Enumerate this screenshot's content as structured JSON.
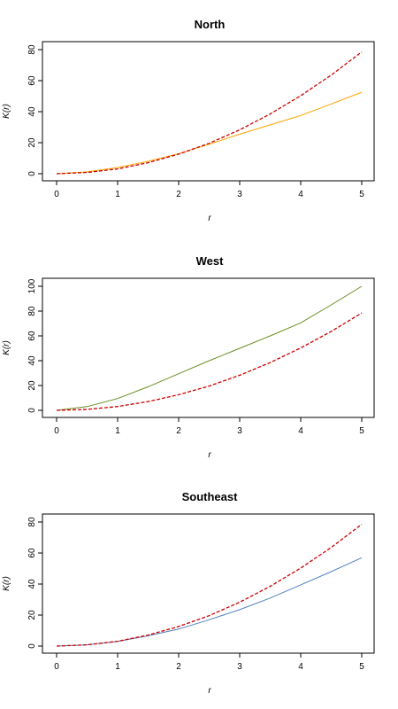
{
  "chart_data": [
    {
      "type": "line",
      "title": "North",
      "xlabel": "r",
      "ylabel": "K(r)",
      "xlim": [
        0,
        5
      ],
      "ylim": [
        0,
        80
      ],
      "xticks": [
        "0",
        "1",
        "2",
        "3",
        "4",
        "5"
      ],
      "yticks": [
        "0",
        "20",
        "40",
        "60",
        "80"
      ],
      "grid": false,
      "x": [
        0,
        0.5,
        1,
        1.5,
        2,
        2.5,
        3,
        3.5,
        4,
        4.5,
        5
      ],
      "series": [
        {
          "color": "#FFA500",
          "style": "solid",
          "values": [
            0,
            1.2,
            4.0,
            8.0,
            13.0,
            19.0,
            25.5,
            31.5,
            37.5,
            45.0,
            52.5
          ]
        },
        {
          "color": "#CC0000",
          "style": "dashed",
          "values": [
            0,
            0.8,
            3.1,
            7.1,
            12.6,
            19.6,
            28.3,
            38.5,
            50.3,
            63.6,
            78.5
          ]
        }
      ]
    },
    {
      "type": "line",
      "title": "West",
      "xlabel": "r",
      "ylabel": "K(r)",
      "xlim": [
        0,
        5
      ],
      "ylim": [
        0,
        100
      ],
      "xticks": [
        "0",
        "1",
        "2",
        "3",
        "4",
        "5"
      ],
      "yticks": [
        "0",
        "20",
        "40",
        "60",
        "80",
        "100"
      ],
      "grid": false,
      "x": [
        0,
        0.5,
        1,
        1.5,
        2,
        2.5,
        3,
        3.5,
        4,
        4.5,
        5
      ],
      "series": [
        {
          "color": "#6B8E23",
          "style": "solid",
          "values": [
            0,
            3.0,
            9.5,
            19.0,
            29.5,
            40.0,
            50.0,
            60.0,
            70.5,
            85.0,
            100.0
          ]
        },
        {
          "color": "#CC0000",
          "style": "dashed",
          "values": [
            0,
            0.8,
            3.1,
            7.1,
            12.6,
            19.6,
            28.3,
            38.5,
            50.3,
            63.6,
            78.5
          ]
        }
      ]
    },
    {
      "type": "line",
      "title": "Southeast",
      "xlabel": "r",
      "ylabel": "K(r)",
      "xlim": [
        0,
        5
      ],
      "ylim": [
        0,
        80
      ],
      "xticks": [
        "0",
        "1",
        "2",
        "3",
        "4",
        "5"
      ],
      "yticks": [
        "0",
        "20",
        "40",
        "60",
        "80"
      ],
      "grid": false,
      "x": [
        0,
        0.5,
        1,
        1.5,
        2,
        2.5,
        3,
        3.5,
        4,
        4.5,
        5
      ],
      "series": [
        {
          "color": "#4F81BD",
          "style": "solid",
          "values": [
            0,
            0.8,
            3.0,
            6.6,
            11.0,
            17.0,
            23.5,
            31.0,
            39.5,
            48.0,
            57.0
          ]
        },
        {
          "color": "#CC0000",
          "style": "dashed",
          "values": [
            0,
            0.8,
            3.1,
            7.1,
            12.6,
            19.6,
            28.3,
            38.5,
            50.3,
            63.6,
            78.5
          ]
        }
      ]
    }
  ]
}
